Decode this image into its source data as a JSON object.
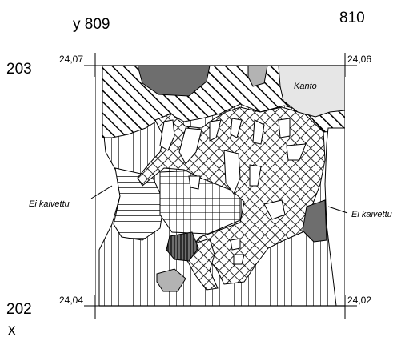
{
  "grid": {
    "y_left": "y 809",
    "y_right": "810",
    "x_top": "203",
    "x_bottom": "202",
    "x_axis": "x"
  },
  "corners": {
    "top_left": "24,07",
    "top_right": "24,06",
    "bottom_left": "24,04",
    "bottom_right": "24,02"
  },
  "annotations": {
    "stump": "Kanto",
    "unexcavated_left": "Ei kaivettu",
    "unexcavated_right": "Ei kaivettu"
  },
  "colors": {
    "stone_fill": "#6e6e6e",
    "light_stone_fill": "#b3b3b3",
    "stump_fill": "#e6e6e6",
    "line": "#000000"
  }
}
